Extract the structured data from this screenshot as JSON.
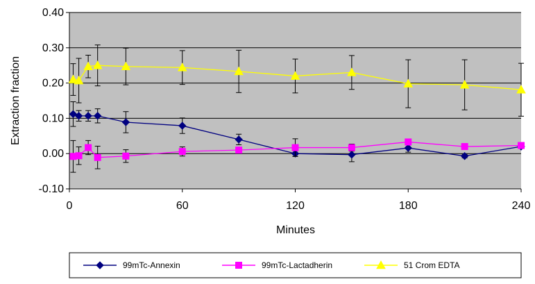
{
  "chart_data": {
    "type": "line",
    "xlabel": "Minutes",
    "ylabel": "Extraction fraction",
    "xlim": [
      0,
      240
    ],
    "ylim": [
      -0.1,
      0.4
    ],
    "x_ticks": [
      0,
      60,
      120,
      180,
      240
    ],
    "x_tick_labels": [
      "0",
      "60",
      "120",
      "180",
      "240"
    ],
    "y_ticks": [
      -0.1,
      0.0,
      0.1,
      0.2,
      0.3,
      0.4
    ],
    "y_tick_labels": [
      "-0.10",
      "0.00",
      "0.10",
      "0.20",
      "0.30",
      "0.40"
    ],
    "grid": "horizontal",
    "plot_background": "#c0c0c0",
    "legend_position": "bottom",
    "series": [
      {
        "name": "99mTc-Annexin",
        "color": "#000080",
        "marker": "diamond",
        "x": [
          2,
          5,
          10,
          15,
          30,
          60,
          90,
          120,
          150,
          180,
          210,
          240
        ],
        "y": [
          0.112,
          0.107,
          0.107,
          0.107,
          0.089,
          0.079,
          0.04,
          0.0,
          -0.003,
          0.016,
          -0.007,
          0.02
        ],
        "err": [
          0.035,
          0.015,
          0.015,
          0.02,
          0.03,
          0.022,
          0.015,
          0.008,
          0.02,
          0.012,
          0.005,
          0.005
        ]
      },
      {
        "name": "99mTc-Lactadherin",
        "color": "#ff00ff",
        "marker": "square",
        "x": [
          2,
          5,
          10,
          15,
          30,
          60,
          90,
          120,
          150,
          180,
          210,
          240
        ],
        "y": [
          -0.008,
          -0.006,
          0.017,
          -0.011,
          -0.007,
          0.006,
          0.01,
          0.017,
          0.017,
          0.033,
          0.02,
          0.023
        ],
        "err": [
          0.045,
          0.025,
          0.02,
          0.032,
          0.018,
          0.013,
          0.008,
          0.025,
          0.01,
          0.005,
          0.008,
          0.006
        ]
      },
      {
        "name": "51 Crom EDTA",
        "color": "#ffff00",
        "marker": "triangle",
        "x": [
          2,
          5,
          10,
          15,
          30,
          60,
          90,
          120,
          150,
          180,
          210,
          240
        ],
        "y": [
          0.21,
          0.207,
          0.247,
          0.25,
          0.247,
          0.244,
          0.233,
          0.22,
          0.23,
          0.198,
          0.195,
          0.181
        ],
        "err": [
          0.045,
          0.063,
          0.032,
          0.058,
          0.052,
          0.048,
          0.06,
          0.048,
          0.048,
          0.068,
          0.071,
          0.075
        ]
      }
    ]
  }
}
